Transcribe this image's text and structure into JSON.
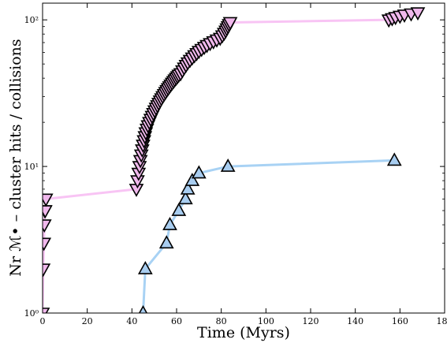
{
  "chart_data": {
    "type": "scatter",
    "xlabel": "Time (Myrs)",
    "ylabel": "Nr ℳ• – cluster hits / collisions",
    "xlim": [
      0,
      180
    ],
    "ylim": [
      1,
      130
    ],
    "yscale": "log",
    "grid": false,
    "x_ticks": [
      0,
      20,
      40,
      60,
      80,
      100,
      120,
      140,
      160,
      180
    ],
    "x_tick_labels": [
      "0",
      "20",
      "40",
      "60",
      "80",
      "100",
      "120",
      "140",
      "160",
      "180"
    ],
    "y_ticks": [
      1,
      10,
      100
    ],
    "y_tick_labels": [
      "10⁰",
      "10¹",
      "10²"
    ],
    "series": [
      {
        "marker": "triangle-down",
        "marker_color": "#f0b8ec",
        "line_color": "#f8c4f4",
        "x": [
          0.0,
          0.3,
          0.6,
          0.8,
          1.0,
          1.2,
          1.5,
          42,
          42.5,
          43,
          43.4,
          43.8,
          44.2,
          44.6,
          45,
          45.4,
          45.8,
          46.2,
          46.7,
          47.2,
          47.8,
          48.4,
          49,
          49.6,
          50.2,
          50.8,
          51.4,
          52,
          52.6,
          53.2,
          53.8,
          54.4,
          55,
          55.6,
          56.2,
          56.8,
          57.4,
          58,
          58.6,
          59.2,
          59.8,
          60.4,
          61,
          61.8,
          62.6,
          63.4,
          64.2,
          65,
          66,
          67,
          68,
          69,
          70,
          71.2,
          72.4,
          73.6,
          75,
          76.5,
          78,
          79.5,
          80.5,
          81.3,
          82,
          82.5,
          83,
          83.5,
          84,
          155,
          156.5,
          158,
          160,
          162,
          165,
          168
        ],
        "y": [
          1,
          2,
          3,
          4,
          5,
          5,
          6,
          7,
          8,
          9,
          10,
          11,
          12,
          13,
          14,
          15,
          16,
          17,
          18,
          19,
          20,
          21,
          22,
          23,
          24,
          25,
          26,
          27,
          28,
          29,
          30,
          31,
          32,
          33,
          34,
          35,
          36,
          37,
          38,
          39,
          40,
          41,
          42,
          43,
          45,
          47,
          49,
          51,
          53,
          55,
          57,
          59,
          61,
          63,
          65,
          67,
          69,
          71,
          73,
          75,
          78,
          81,
          84,
          87,
          90,
          93,
          96,
          100,
          102,
          104,
          106,
          108,
          110,
          112
        ]
      },
      {
        "marker": "triangle-up",
        "marker_color": "#a8cdf0",
        "line_color": "#a8d2f4",
        "x": [
          45,
          46,
          55.5,
          57,
          61,
          64,
          65,
          67,
          70,
          83,
          157.5
        ],
        "y": [
          1,
          2,
          3,
          4,
          5,
          6,
          7,
          8,
          9,
          10,
          11
        ]
      }
    ]
  }
}
